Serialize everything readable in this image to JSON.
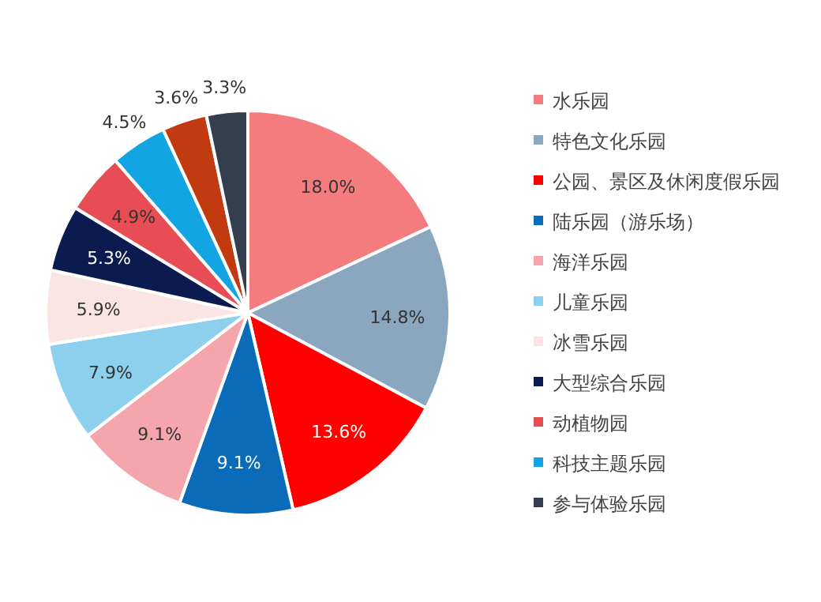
{
  "chart_data": {
    "type": "pie",
    "categories": [
      "水乐园",
      "特色文化乐园",
      "公园、景区及休闲度假乐园",
      "陆乐园（游乐场）",
      "海洋乐园",
      "儿童乐园",
      "冰雪乐园",
      "大型综合乐园",
      "动植物园",
      "科技主题乐园",
      null,
      "参与体验乐园"
    ],
    "values": [
      18.0,
      14.8,
      13.6,
      9.1,
      9.1,
      7.9,
      5.9,
      5.3,
      4.9,
      4.5,
      3.6,
      3.3
    ],
    "value_labels": [
      "18.0%",
      "14.8%",
      "13.6%",
      "9.1%",
      "9.1%",
      "7.9%",
      "5.9%",
      "5.3%",
      "4.9%",
      "4.5%",
      "3.6%",
      "3.3%"
    ],
    "colors": [
      "#f47c7f",
      "#8aa7bf",
      "#fe0000",
      "#0a6bb8",
      "#f4a6ac",
      "#8dd0ee",
      "#fbe4e4",
      "#0c1b4f",
      "#e84d55",
      "#13a4e3",
      "#c23b10",
      "#343e4f"
    ],
    "legend": "right"
  }
}
